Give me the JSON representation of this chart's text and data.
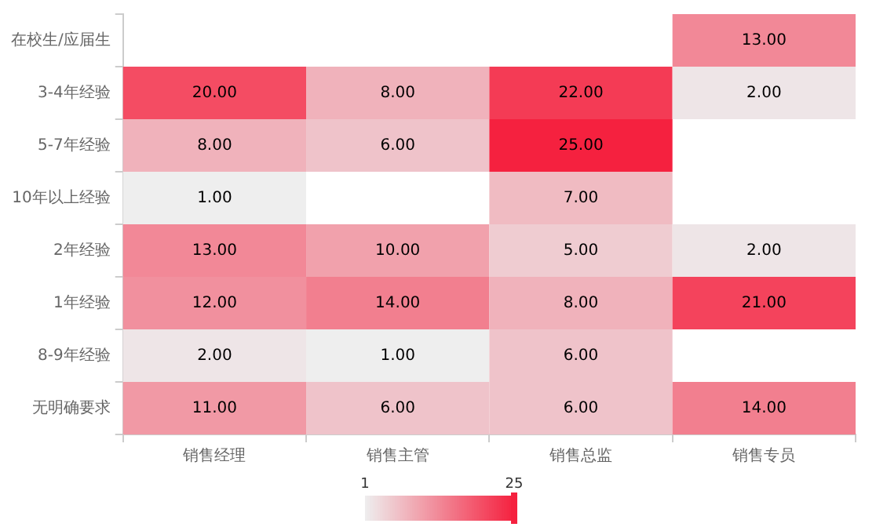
{
  "chart_data": {
    "type": "heatmap",
    "categories": [
      "销售经理",
      "销售主管",
      "销售总监",
      "销售专员"
    ],
    "y_categories": [
      "在校生/应届生",
      "3-4年经验",
      "5-7年经验",
      "10年以上经验",
      "2年经验",
      "1年经验",
      "8-9年经验",
      "无明确要求"
    ],
    "cells": [
      [
        null,
        null,
        null,
        13
      ],
      [
        20,
        8,
        22,
        2
      ],
      [
        8,
        6,
        25,
        null
      ],
      [
        1,
        null,
        7,
        null
      ],
      [
        13,
        10,
        5,
        2
      ],
      [
        12,
        14,
        8,
        21
      ],
      [
        2,
        1,
        6,
        null
      ],
      [
        11,
        6,
        6,
        14
      ]
    ],
    "cell_labels": [
      [
        null,
        null,
        null,
        "13.00"
      ],
      [
        "20.00",
        "8.00",
        "22.00",
        "2.00"
      ],
      [
        "8.00",
        "6.00",
        "25.00",
        null
      ],
      [
        "1.00",
        null,
        "7.00",
        null
      ],
      [
        "13.00",
        "10.00",
        "5.00",
        "2.00"
      ],
      [
        "12.00",
        "14.00",
        "8.00",
        "21.00"
      ],
      [
        "2.00",
        "1.00",
        "6.00",
        null
      ],
      [
        "11.00",
        "6.00",
        "6.00",
        "14.00"
      ]
    ],
    "clim": [
      1,
      25
    ],
    "cticks": [
      1,
      25
    ]
  }
}
